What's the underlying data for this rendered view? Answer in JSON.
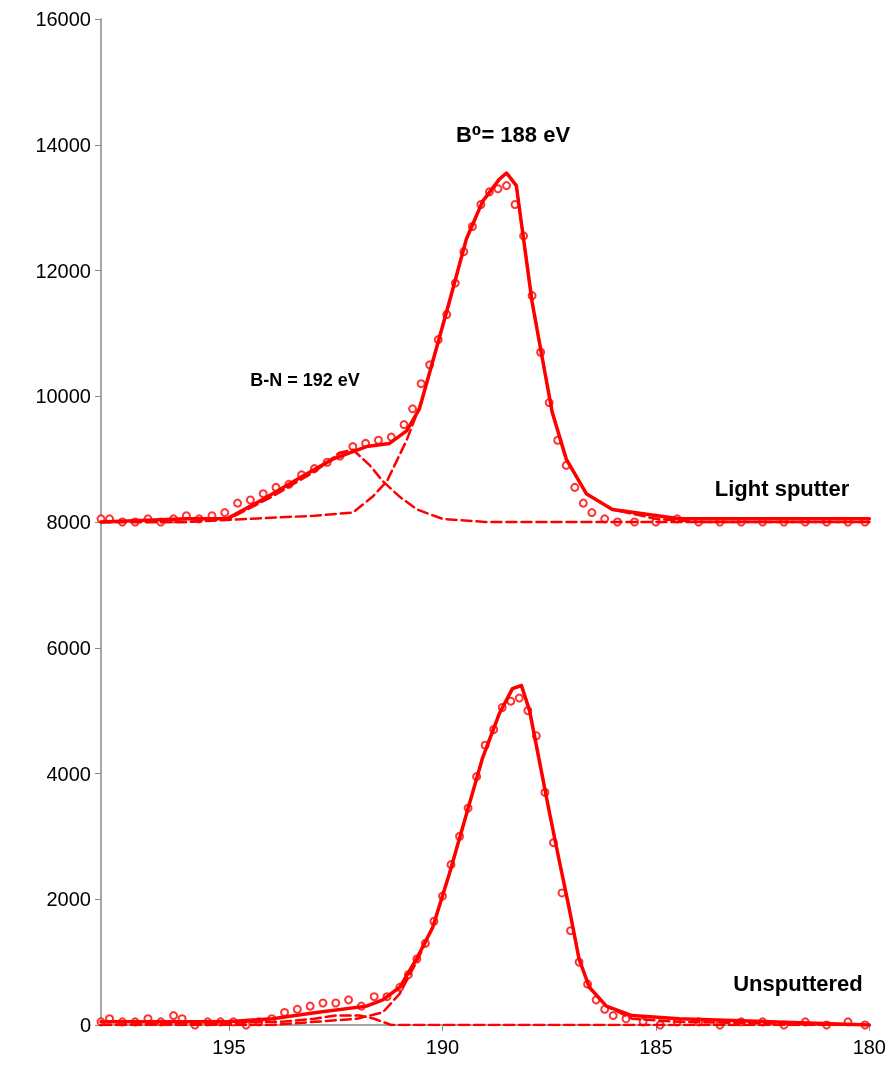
{
  "chart_data": {
    "type": "line",
    "xlim": [
      198,
      180
    ],
    "xticks": [
      195,
      190,
      185,
      180
    ],
    "ylim": [
      0,
      16000
    ],
    "yticks": [
      0,
      2000,
      4000,
      6000,
      8000,
      10000,
      12000,
      14000,
      16000
    ],
    "annotations": [
      "B⁰= 188 eV",
      "B-N = 192 eV",
      "Light sputter",
      "Unsputtered"
    ],
    "series": [
      {
        "type": "scatter",
        "marker": "circle",
        "color": "#ff0000",
        "x": [
          198,
          197.8,
          197.5,
          197.2,
          196.9,
          196.6,
          196.3,
          196.0,
          195.7,
          195.4,
          195.1,
          194.8,
          194.5,
          194.2,
          193.9,
          193.6,
          193.3,
          193.0,
          192.7,
          192.4,
          192.1,
          191.8,
          191.5,
          191.2,
          190.9,
          190.7,
          190.5,
          190.3,
          190.1,
          189.9,
          189.7,
          189.5,
          189.3,
          189.1,
          188.9,
          188.7,
          188.5,
          188.3,
          188.1,
          187.9,
          187.7,
          187.5,
          187.3,
          187.1,
          186.9,
          186.7,
          186.5,
          186.2,
          185.9,
          185.5,
          185.0,
          184.5,
          184.0,
          183.5,
          183.0,
          182.5,
          182.0,
          181.5,
          181.0,
          180.5,
          180.1
        ],
        "values": [
          8050,
          8050,
          8000,
          8000,
          8050,
          8000,
          8050,
          8100,
          8050,
          8100,
          8150,
          8300,
          8350,
          8450,
          8550,
          8600,
          8750,
          8850,
          8950,
          9050,
          9200,
          9250,
          9300,
          9350,
          9550,
          9800,
          10200,
          10500,
          10900,
          11300,
          11800,
          12300,
          12700,
          13050,
          13250,
          13300,
          13350,
          13050,
          12550,
          11600,
          10700,
          9900,
          9300,
          8900,
          8550,
          8300,
          8150,
          8050,
          8000,
          8000,
          8000,
          8050,
          8000,
          8000,
          8000,
          8000,
          8000,
          8000,
          8000,
          8000,
          8000
        ]
      },
      {
        "line_style": "solid",
        "color": "#ff0000",
        "x": [
          198,
          196,
          195.05,
          194.1,
          193.35,
          192.57,
          191.78,
          191.24,
          190.84,
          190.54,
          190.23,
          189.84,
          189.44,
          189.06,
          188.67,
          188.5,
          188.27,
          188.13,
          187.9,
          187.66,
          187.43,
          187.1,
          186.63,
          186.02,
          184.46,
          180
        ],
        "values": [
          8000,
          8050,
          8050,
          8400,
          8700,
          9000,
          9200,
          9250,
          9450,
          9800,
          10550,
          11500,
          12500,
          13100,
          13450,
          13550,
          13350,
          12650,
          11500,
          10600,
          9750,
          9000,
          8450,
          8200,
          8050,
          8050
        ]
      },
      {
        "line_style": "dashed",
        "color": "#ff0000",
        "x": [
          198,
          196,
          195,
          194,
          193,
          192.4,
          192.1,
          191.7,
          191.4,
          191,
          190.6,
          190,
          189,
          180
        ],
        "values": [
          8000,
          8000,
          8050,
          8400,
          8800,
          9100,
          9150,
          8900,
          8650,
          8400,
          8200,
          8050,
          8000,
          8000
        ]
      },
      {
        "line_style": "dashed",
        "color": "#ff0000",
        "x": [
          198,
          196,
          194.5,
          193,
          192.1,
          191.64,
          191.3,
          190.84,
          190.5,
          190.23,
          189.84,
          189.44,
          189.06,
          188.67,
          188.5,
          188.27,
          188.13,
          187.9,
          187.66,
          187.43,
          187.1,
          186.63,
          186.02,
          185,
          184,
          180
        ],
        "values": [
          8000,
          8000,
          8050,
          8100,
          8150,
          8400,
          8650,
          9300,
          9900,
          10550,
          11500,
          12500,
          13100,
          13450,
          13550,
          13350,
          12650,
          11500,
          10600,
          9750,
          9000,
          8450,
          8200,
          8050,
          8000,
          8000
        ]
      },
      {
        "type": "scatter",
        "marker": "circle",
        "color": "#ff0000",
        "x": [
          198,
          197.8,
          197.5,
          197.2,
          196.9,
          196.6,
          196.3,
          196.1,
          195.8,
          195.5,
          195.2,
          194.9,
          194.6,
          194.3,
          194.0,
          193.7,
          193.4,
          193.1,
          192.8,
          192.5,
          192.2,
          191.9,
          191.6,
          191.3,
          191.0,
          190.8,
          190.6,
          190.4,
          190.2,
          190.0,
          189.8,
          189.6,
          189.4,
          189.2,
          189.0,
          188.8,
          188.6,
          188.4,
          188.2,
          188.0,
          187.8,
          187.6,
          187.4,
          187.2,
          187.0,
          186.8,
          186.6,
          186.4,
          186.2,
          186.0,
          185.7,
          185.3,
          184.9,
          184.5,
          184.0,
          183.5,
          183.0,
          182.5,
          182.0,
          181.5,
          181.0,
          180.5,
          180.1
        ],
        "values": [
          50,
          100,
          50,
          50,
          100,
          50,
          150,
          100,
          0,
          50,
          50,
          50,
          0,
          50,
          100,
          200,
          250,
          300,
          350,
          350,
          400,
          300,
          450,
          450,
          600,
          800,
          1050,
          1300,
          1650,
          2050,
          2550,
          3000,
          3450,
          3950,
          4450,
          4700,
          5050,
          5150,
          5200,
          5000,
          4600,
          3700,
          2900,
          2100,
          1500,
          1000,
          650,
          400,
          250,
          150,
          100,
          50,
          0,
          50,
          50,
          0,
          50,
          50,
          0,
          50,
          0,
          50,
          0
        ]
      },
      {
        "line_style": "solid",
        "color": "#ff0000",
        "x": [
          198,
          195.03,
          193.98,
          192.95,
          191.78,
          191.4,
          191.0,
          190.61,
          190.23,
          189.84,
          189.44,
          189.06,
          188.67,
          188.36,
          188.15,
          187.96,
          187.73,
          187.5,
          187.26,
          187.03,
          186.8,
          186.56,
          186.16,
          185.56,
          184.46,
          180
        ],
        "values": [
          50,
          50,
          100,
          200,
          300,
          400,
          600,
          1050,
          1550,
          2400,
          3350,
          4250,
          4950,
          5350,
          5400,
          5000,
          4200,
          3400,
          2600,
          1850,
          1050,
          600,
          300,
          150,
          100,
          0
        ]
      },
      {
        "line_style": "dashed",
        "color": "#ff0000",
        "x": [
          198,
          193.8,
          193,
          192.5,
          191.94,
          191.6,
          191.2,
          190,
          180
        ],
        "values": [
          0,
          50,
          100,
          150,
          150,
          100,
          0,
          0,
          0
        ]
      },
      {
        "line_style": "dashed",
        "color": "#ff0000",
        "x": [
          198,
          194,
          193,
          192,
          191.4,
          191.0,
          190.61,
          190.23,
          189.84,
          189.44,
          189.06,
          188.67,
          188.36,
          188.15,
          187.96,
          187.73,
          187.5,
          187.26,
          187.03,
          186.8,
          186.56,
          186.16,
          185.56,
          184.46,
          180
        ],
        "values": [
          0,
          0,
          50,
          100,
          200,
          500,
          1000,
          1550,
          2400,
          3350,
          4250,
          4950,
          5350,
          5400,
          5000,
          4200,
          3400,
          2600,
          1850,
          1050,
          600,
          300,
          100,
          50,
          0
        ]
      }
    ]
  }
}
